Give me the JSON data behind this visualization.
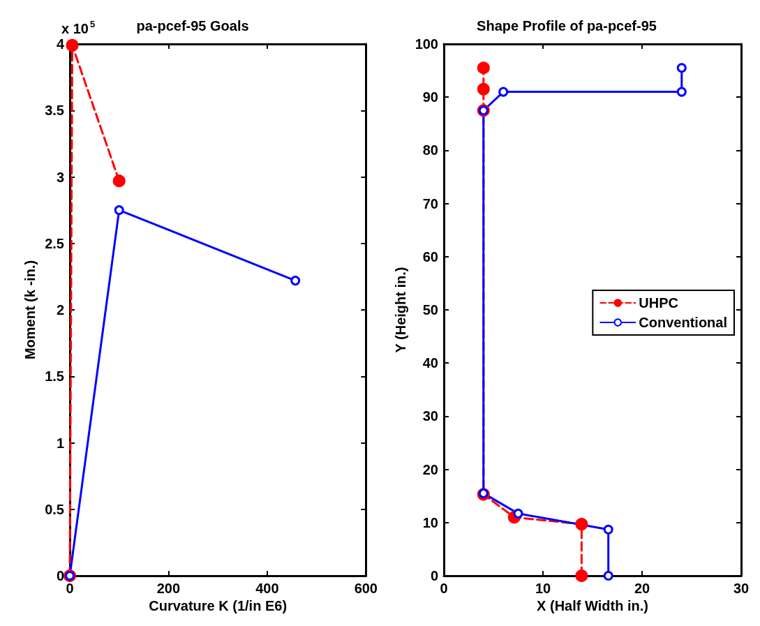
{
  "chart_data": [
    {
      "type": "line",
      "title": "pa-pcef-95 Goals",
      "xlabel": "Curvature K (1/in E6)",
      "ylabel": "Moment (k -in.)",
      "annotations": [
        "x 10$^{5}$"
      ],
      "xlim": [
        0,
        600
      ],
      "xticks": [
        0,
        200,
        400,
        600
      ],
      "ylim": [
        0,
        4
      ],
      "yticks": [
        0,
        0.5,
        1,
        1.5,
        2,
        2.5,
        3,
        3.5,
        4
      ],
      "grid": false,
      "legend": false,
      "series": [
        {
          "color": "#ff0000",
          "line_style": "dashed",
          "marker": "circle",
          "x": [
            0,
            5,
            100
          ],
          "values": [
            0,
            3.99,
            2.97
          ]
        },
        {
          "color": "#0000ff",
          "line_style": "solid",
          "marker": "circle",
          "x": [
            0,
            100,
            457
          ],
          "values": [
            0,
            2.75,
            2.22
          ]
        }
      ]
    },
    {
      "type": "line",
      "title": "Shape Profile of pa-pcef-95",
      "xlabel": "X (Half Width in.)",
      "ylabel": "Y (Height in.)",
      "xlim": [
        0,
        30
      ],
      "xticks": [
        0,
        10,
        20,
        30
      ],
      "ylim": [
        0,
        100
      ],
      "yticks": [
        0,
        10,
        20,
        30,
        40,
        50,
        60,
        70,
        80,
        90,
        100
      ],
      "grid": false,
      "legend": "right",
      "series": [
        {
          "name": "UHPC",
          "color": "#ff0000",
          "line_style": "dashed",
          "marker": "circle",
          "x": [
            13.9,
            13.9,
            7.1,
            4,
            4,
            4,
            4
          ],
          "values": [
            0,
            9.7,
            11,
            15.3,
            87.5,
            91.5,
            95.5
          ]
        },
        {
          "name": "Conventional",
          "color": "#0000ff",
          "line_style": "solid",
          "marker": "circle",
          "x": [
            16.6,
            16.6,
            7.5,
            4,
            4,
            6,
            24,
            24
          ],
          "values": [
            0,
            8.7,
            11.7,
            15.5,
            87.5,
            91,
            91,
            95.5
          ]
        }
      ]
    }
  ]
}
